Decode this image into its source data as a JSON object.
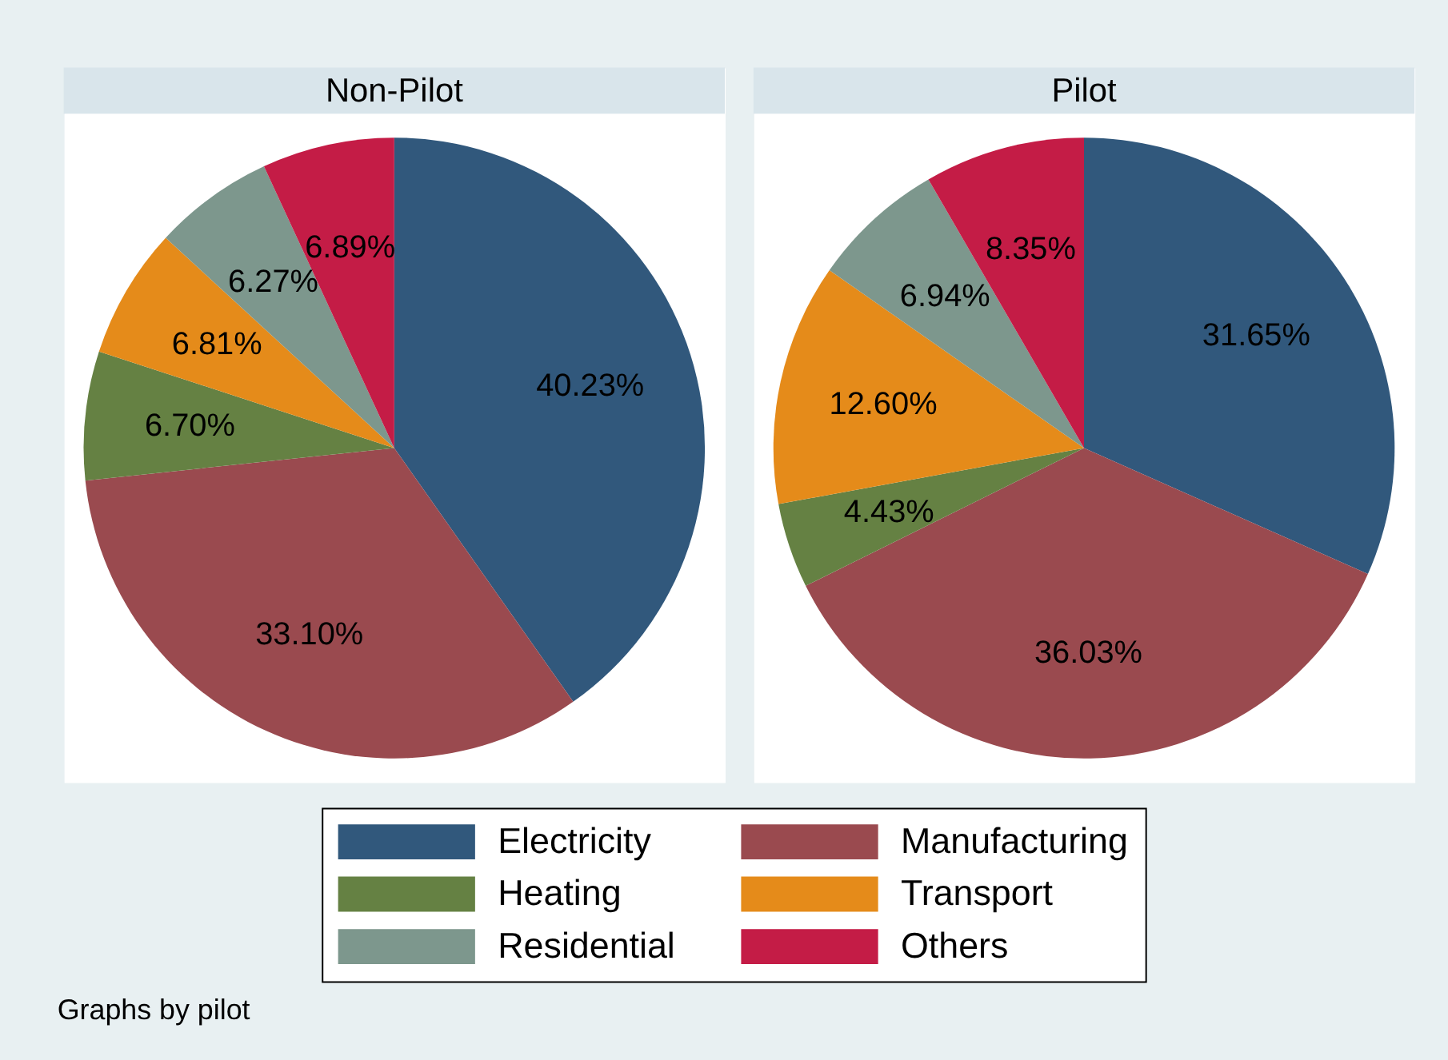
{
  "chart_data": {
    "type": "pie",
    "categories": [
      "Electricity",
      "Manufacturing",
      "Heating",
      "Transport",
      "Residential",
      "Others"
    ],
    "colors": [
      "#31587c",
      "#9a4a4f",
      "#658143",
      "#e58b1a",
      "#7d978d",
      "#c41c46"
    ],
    "series": [
      {
        "name": "Non-Pilot",
        "values": [
          40.23,
          33.1,
          6.7,
          6.81,
          6.27,
          6.89
        ],
        "value_labels": [
          "40.23%",
          "33.10%",
          "6.70%",
          "6.81%",
          "6.27%",
          "6.89%"
        ]
      },
      {
        "name": "Pilot",
        "values": [
          31.65,
          36.03,
          4.43,
          12.6,
          6.94,
          8.35
        ],
        "value_labels": [
          "31.65%",
          "36.03%",
          "4.43%",
          "12.60%",
          "6.94%",
          "8.35%"
        ]
      }
    ],
    "legend": "bottom",
    "annotations": [
      "Graphs by pilot"
    ]
  }
}
